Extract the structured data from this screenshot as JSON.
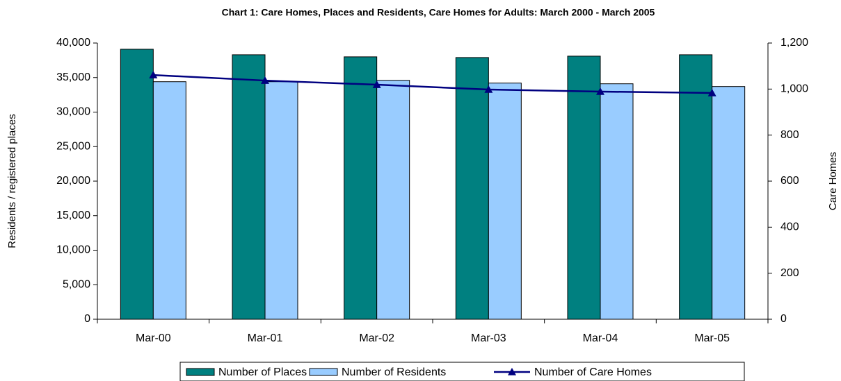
{
  "chart_data": {
    "type": "bar",
    "title": "Chart 1: Care Homes, Places and Residents, Care Homes for Adults: March 2000 - March 2005",
    "y_label": "Residents / registered places",
    "y2_label": "Care Homes",
    "categories": [
      "Mar-00",
      "Mar-01",
      "Mar-02",
      "Mar-03",
      "Mar-04",
      "Mar-05"
    ],
    "series": [
      {
        "name": "Number of Places",
        "type": "bar",
        "color": "#008080",
        "values": [
          39100,
          38300,
          38000,
          37900,
          38100,
          38300
        ]
      },
      {
        "name": "Number of Residents",
        "type": "bar",
        "color": "#99ccff",
        "values": [
          34400,
          34400,
          34600,
          34200,
          34100,
          33700
        ]
      },
      {
        "name": "Number of Care Homes",
        "type": "line",
        "axis": "y2",
        "color": "#000080",
        "values": [
          1061,
          1037,
          1019,
          998,
          989,
          983
        ]
      }
    ],
    "ylim": [
      0,
      40000
    ],
    "yticks": [
      0,
      {
        "value": 5000,
        "label": "5,000"
      },
      {
        "value": 10000,
        "label": "10,000"
      },
      {
        "value": 15000,
        "label": "15,000"
      },
      {
        "value": 20000,
        "label": "20,000"
      },
      {
        "value": 25000,
        "label": "25,000"
      },
      {
        "value": 30000,
        "label": "30,000"
      },
      {
        "value": 35000,
        "label": "35,000"
      },
      {
        "value": 40000,
        "label": "40,000"
      }
    ],
    "y2lim": [
      0,
      1200
    ],
    "y2ticks": [
      0,
      200,
      400,
      600,
      800,
      {
        "value": 1000,
        "label": "1,000"
      },
      {
        "value": 1200,
        "label": "1,200"
      }
    ],
    "legend": "bottom"
  }
}
